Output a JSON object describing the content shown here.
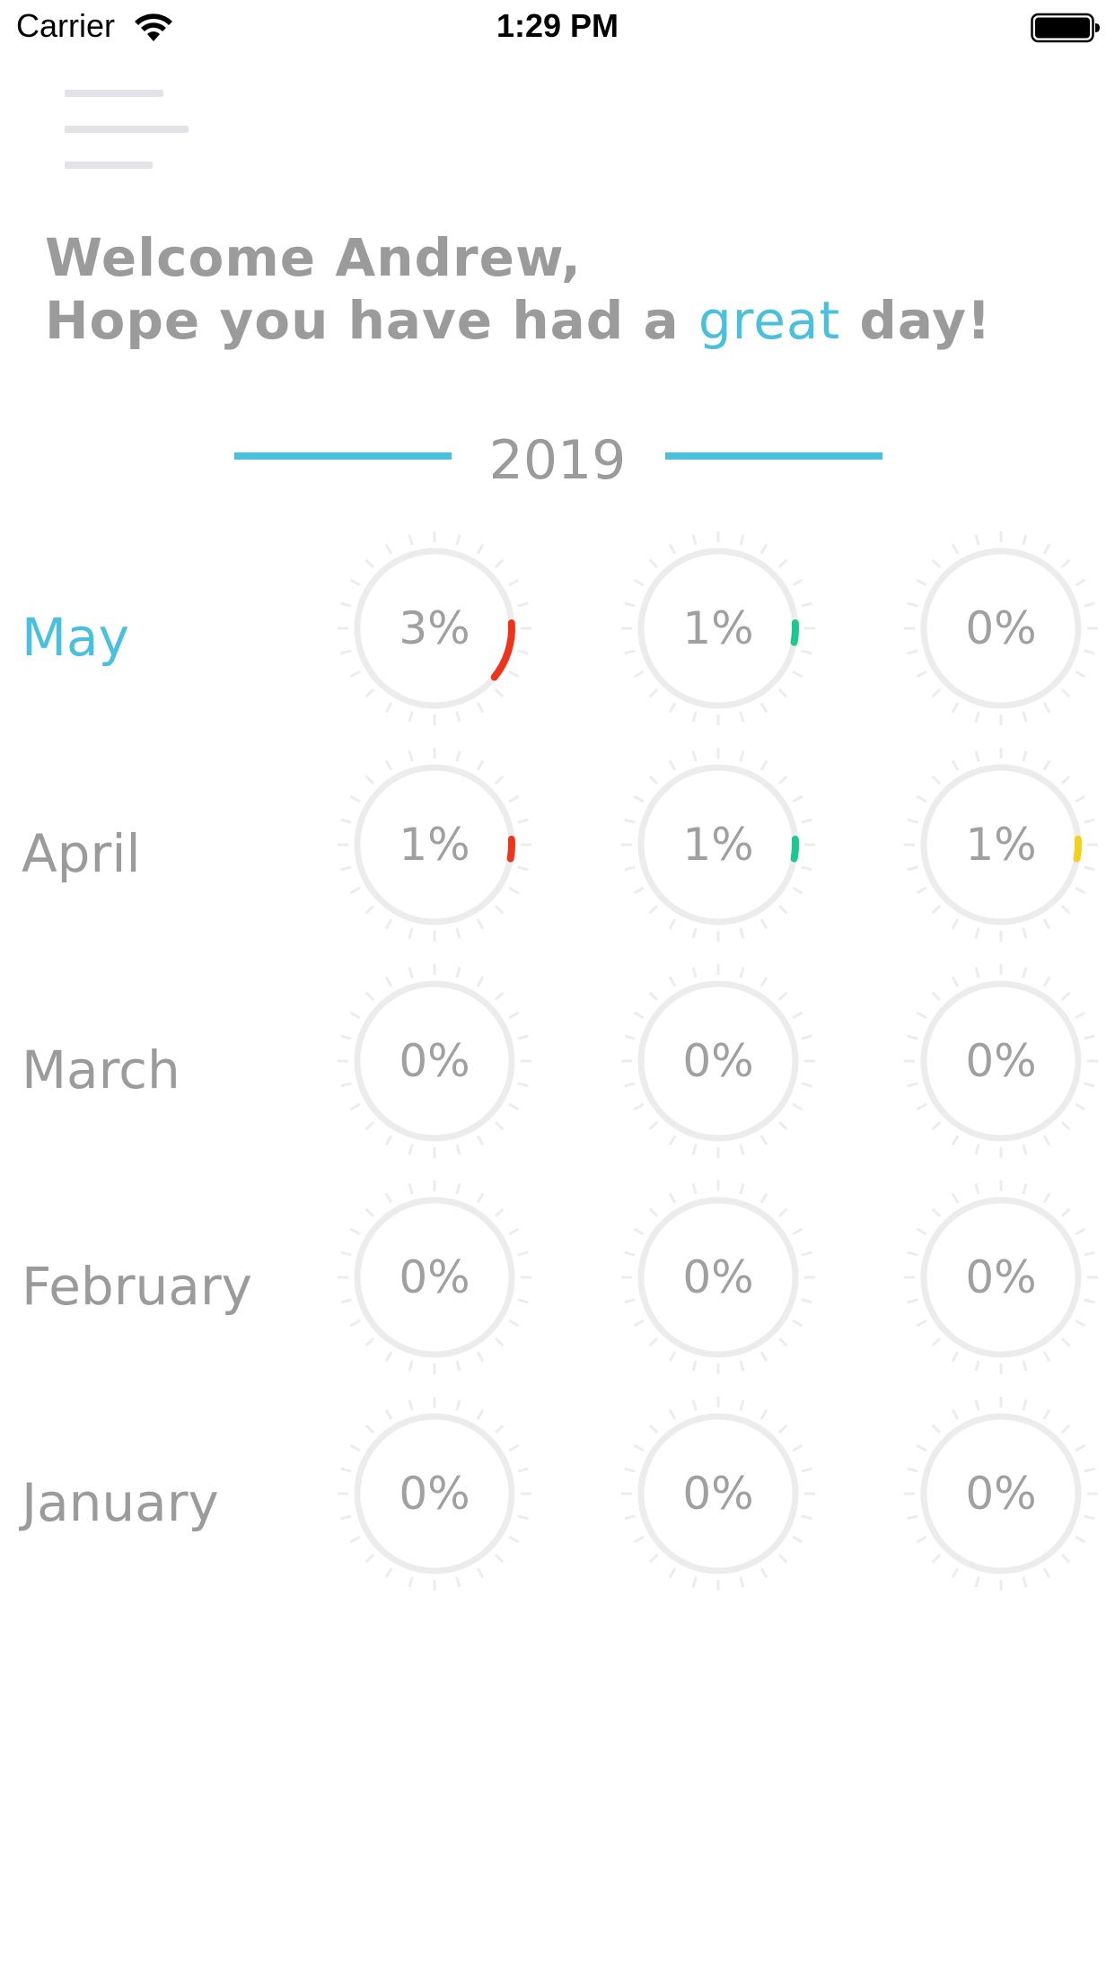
{
  "status_bar": {
    "carrier": "Carrier",
    "time": "1:29 PM"
  },
  "greeting": {
    "line1": "Welcome Andrew,",
    "line2_prefix": "Hope you have had a ",
    "line2_accent": "great",
    "line2_suffix": " day!"
  },
  "year": "2019",
  "colors": {
    "accent": "#4ac0de",
    "ring": "#ececec",
    "red": "#f0331b",
    "green": "#1bc98e",
    "yellow": "#f4d01c"
  },
  "months": [
    {
      "name": "May",
      "active": true,
      "gauges": [
        {
          "label": "3%",
          "value": 3,
          "color": "#f0331b"
        },
        {
          "label": "1%",
          "value": 1,
          "color": "#1bc98e"
        },
        {
          "label": "0%",
          "value": 0,
          "color": "#f4d01c"
        }
      ]
    },
    {
      "name": "April",
      "active": false,
      "gauges": [
        {
          "label": "1%",
          "value": 1,
          "color": "#f0331b"
        },
        {
          "label": "1%",
          "value": 1,
          "color": "#1bc98e"
        },
        {
          "label": "1%",
          "value": 1,
          "color": "#f4d01c"
        }
      ]
    },
    {
      "name": "March",
      "active": false,
      "gauges": [
        {
          "label": "0%",
          "value": 0,
          "color": "#f0331b"
        },
        {
          "label": "0%",
          "value": 0,
          "color": "#1bc98e"
        },
        {
          "label": "0%",
          "value": 0,
          "color": "#f4d01c"
        }
      ]
    },
    {
      "name": "February",
      "active": false,
      "gauges": [
        {
          "label": "0%",
          "value": 0,
          "color": "#f0331b"
        },
        {
          "label": "0%",
          "value": 0,
          "color": "#1bc98e"
        },
        {
          "label": "0%",
          "value": 0,
          "color": "#f4d01c"
        }
      ]
    },
    {
      "name": "January",
      "active": false,
      "gauges": [
        {
          "label": "0%",
          "value": 0,
          "color": "#f0331b"
        },
        {
          "label": "0%",
          "value": 0,
          "color": "#1bc98e"
        },
        {
          "label": "0%",
          "value": 0,
          "color": "#f4d01c"
        }
      ]
    }
  ]
}
